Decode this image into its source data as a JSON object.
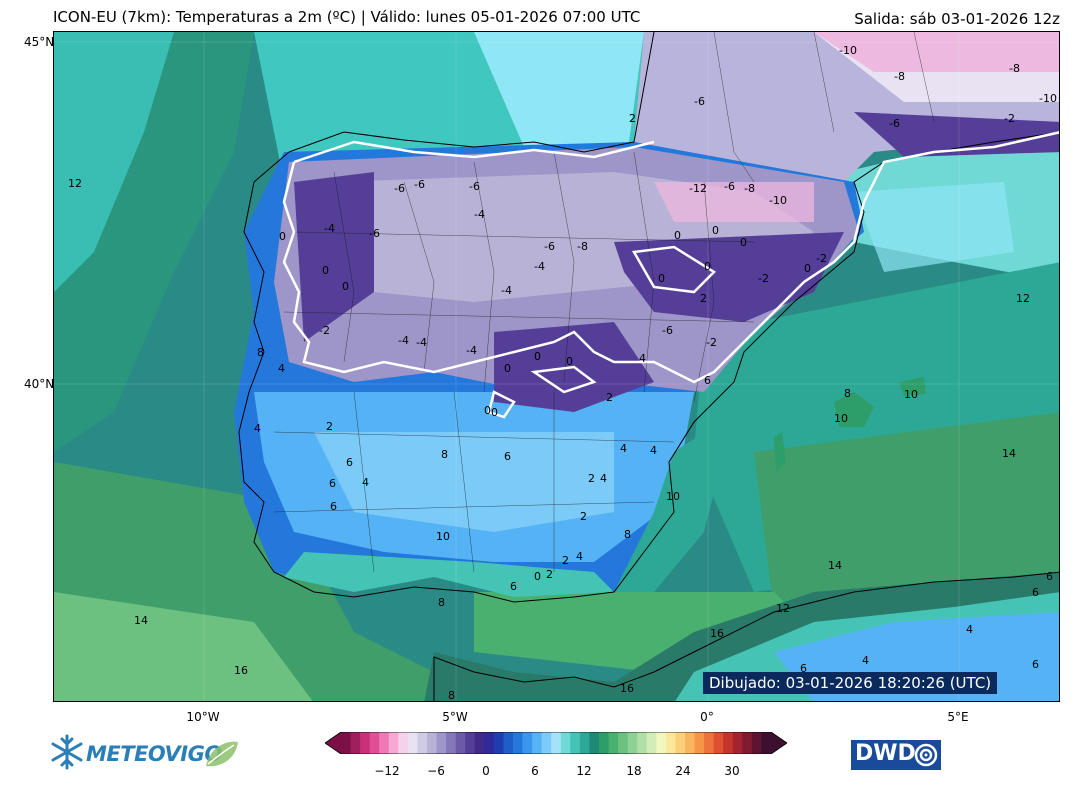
{
  "header": {
    "title": "ICON-EU (7km): Temperaturas a 2m (ºC) | Válido: lunes 05-01-2026 07:00 UTC",
    "run": "Salida: sáb 03-01-2026 12z"
  },
  "axes": {
    "lat_labels": [
      "45°N",
      "40°N"
    ],
    "lon_labels": [
      "10°W",
      "5°W",
      "0°",
      "5°E"
    ]
  },
  "map": {
    "drawn_stamp": "Dibujado: 03-01-2026 18:20:26 (UTC)",
    "contour_labels": [
      "-12",
      "-10",
      "-8",
      "-6",
      "-4",
      "-2",
      "0",
      "2",
      "4",
      "6",
      "8",
      "10",
      "12",
      "14",
      "16"
    ],
    "colors": {
      "sea_warm": "#2a8a86",
      "sea_cool": "#3fc7c0",
      "coastal_cyan": "#8fe6f5",
      "freezing_purple": "#4b2a8a",
      "subzero_lavender": "#b8b4dc",
      "cold_pink": "#e887c8",
      "mild_green": "#4aa86a",
      "blue": "#2a7ad0",
      "zero_contour": "#ffffff"
    }
  },
  "colorbar": {
    "ticks": [
      "−12",
      "−6",
      "0",
      "6",
      "12",
      "18",
      "24",
      "30"
    ],
    "colors": [
      "#7a1046",
      "#a0205e",
      "#c8307a",
      "#e04f96",
      "#ee79b6",
      "#f6a8d2",
      "#f4d2ec",
      "#e8e2f2",
      "#d0cbe4",
      "#b8b2d6",
      "#9e96c8",
      "#8478b8",
      "#6c5aa8",
      "#553e98",
      "#412a8a",
      "#2f2a9a",
      "#1f3fb0",
      "#1f5ec8",
      "#2478dc",
      "#3896ec",
      "#55b2f4",
      "#7ccaf8",
      "#a4e2fa",
      "#70d9d6",
      "#45c4b6",
      "#2da896",
      "#1e8a76",
      "#2d9e6a",
      "#4ab070",
      "#6cc080",
      "#8fd096",
      "#b2dfa8",
      "#d4ecb8",
      "#f2f6c0",
      "#fbe79a",
      "#fcd07a",
      "#fab560",
      "#f59548",
      "#ec733a",
      "#dd5030",
      "#c4362c",
      "#a42430",
      "#801a30",
      "#5e1430",
      "#3e1030"
    ]
  },
  "logos": {
    "left_brand": "METEOVIGO",
    "right_brand": "DWD"
  }
}
